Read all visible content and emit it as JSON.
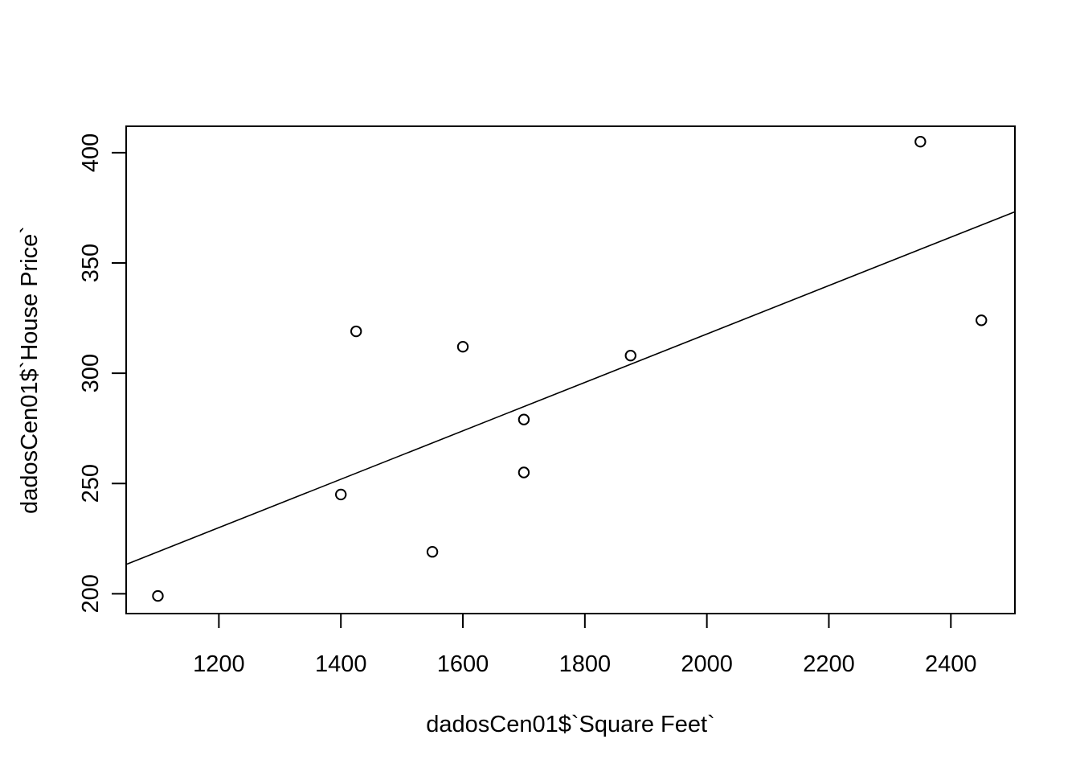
{
  "chart_data": {
    "type": "scatter",
    "title": "",
    "xlabel": "dadosCen01$`Square Feet`",
    "ylabel": "dadosCen01$`House Price`",
    "xlim": [
      1048,
      2505
    ],
    "ylim": [
      191,
      412
    ],
    "x_ticks": [
      1200,
      1400,
      1600,
      1800,
      2000,
      2200,
      2400
    ],
    "y_ticks": [
      200,
      250,
      300,
      350,
      400
    ],
    "x_tick_labels": [
      "1200",
      "1400",
      "1600",
      "1800",
      "2000",
      "2200",
      "2400"
    ],
    "y_tick_labels": [
      "200",
      "250",
      "300",
      "350",
      "400"
    ],
    "grid": false,
    "legend": "none",
    "series": [
      {
        "points": [
          {
            "x": 1100,
            "y": 199
          },
          {
            "x": 1400,
            "y": 245
          },
          {
            "x": 1425,
            "y": 319
          },
          {
            "x": 1550,
            "y": 219
          },
          {
            "x": 1600,
            "y": 312
          },
          {
            "x": 1700,
            "y": 279
          },
          {
            "x": 1700,
            "y": 255
          },
          {
            "x": 1875,
            "y": 308
          },
          {
            "x": 2350,
            "y": 405
          },
          {
            "x": 2450,
            "y": 324
          }
        ]
      }
    ],
    "regression_line": {
      "intercept": 98.25,
      "slope": 0.10977
    },
    "colors": {
      "points": "#000000",
      "line": "#000000",
      "frame": "#000000"
    }
  }
}
